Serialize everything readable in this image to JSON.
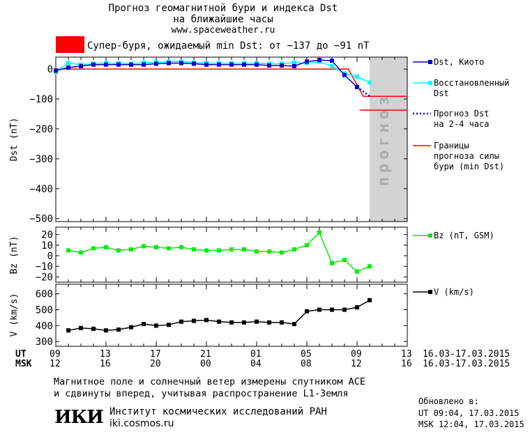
{
  "header": {
    "title_line1": "Прогноз геомагнитной бури и индекса Dst",
    "title_line2": "на ближайшие часы",
    "url": "www.spaceweather.ru",
    "storm_label": "Супер-буря, ожидаемый min Dst: от −137 до −91 nT",
    "storm_color": "#ff0000"
  },
  "legend": {
    "dst_kyoto": "Dst, Киото",
    "restored_1": "Восстановленный",
    "restored_2": "Dst",
    "forecast_1": "Прогноз Dst",
    "forecast_2": "на 2-4 часа",
    "bounds_1": "Границы",
    "bounds_2": "прогноза силы",
    "bounds_3": "бури (min Dst)",
    "bz": "Bz (nT, GSM)",
    "v": "V (km/s)"
  },
  "forecast_band_text": "прогноз",
  "time_axis": {
    "ut_label": "UT",
    "msk_label": "MSK",
    "ut_ticks": [
      "09",
      "13",
      "17",
      "21",
      "01",
      "05",
      "09",
      "13"
    ],
    "msk_ticks": [
      "12",
      "16",
      "20",
      "00",
      "04",
      "08",
      "12",
      "16"
    ],
    "date_range_ut": "16.03-17.03.2015",
    "date_range_msk": "16.03-17.03.2015"
  },
  "footer": {
    "note_1": "Магнитное поле и солнечный ветер измерены спутником ACE",
    "note_2": "и сдвинуты вперед, учитывая распространение L1-Земля",
    "logo": "ИКИ",
    "institute": "Институт космических исследований РАН",
    "institute_url": "iki.cosmos.ru",
    "updated_label": "Обновлено в:",
    "updated_ut": "UT   09:04, 17.03.2015",
    "updated_msk": "MSK 12:04, 17.03.2015"
  },
  "chart_data": [
    {
      "type": "line",
      "ylabel": "Dst (nT)",
      "xlim": [
        0,
        28
      ],
      "ylim": [
        -510,
        40
      ],
      "yticks": [
        0,
        -100,
        -200,
        -300,
        -400,
        -500
      ],
      "forecast_band": [
        25,
        28
      ],
      "colors": {
        "kyoto": "#0000cc",
        "restored": "#00ffff",
        "forecast": "#0000cc",
        "bounds": "#ff0000",
        "band": "#d3d3d3"
      },
      "series": [
        {
          "name": "Dst, Киото",
          "x": [
            0,
            1,
            2,
            3,
            4,
            5,
            6,
            7,
            8,
            9,
            10,
            11,
            12,
            13,
            14,
            15,
            16,
            17,
            18,
            19,
            20,
            21,
            22,
            23,
            24
          ],
          "values": [
            -5,
            5,
            10,
            15,
            15,
            15,
            15,
            15,
            18,
            20,
            20,
            18,
            15,
            15,
            15,
            15,
            15,
            12,
            12,
            10,
            25,
            30,
            28,
            -20,
            -60
          ]
        },
        {
          "name": "Восстановленный Dst",
          "x": [
            0,
            1,
            2,
            3,
            4,
            5,
            6,
            7,
            8,
            9,
            10,
            11,
            12,
            13,
            14,
            15,
            16,
            17,
            18,
            19,
            20,
            21,
            22,
            23,
            24,
            25
          ],
          "values": [
            -8,
            20,
            15,
            18,
            20,
            20,
            18,
            22,
            22,
            25,
            25,
            22,
            20,
            20,
            20,
            20,
            20,
            18,
            18,
            22,
            20,
            25,
            10,
            -15,
            -25,
            -45
          ]
        },
        {
          "name": "Прогноз Dst на 2-4 часа",
          "x": [
            24,
            24.5,
            25
          ],
          "values": [
            -60,
            -75,
            -90
          ]
        },
        {
          "name": "Границы прогноза силы бури (min Dst)",
          "x": [
            0,
            23.3,
            24.5,
            28
          ],
          "values": [
            0,
            0,
            -91,
            -91
          ]
        },
        {
          "name": "",
          "x": [
            24.2,
            28
          ],
          "values": [
            -137,
            -137
          ]
        }
      ]
    },
    {
      "type": "line",
      "ylabel": "Bz (nT)",
      "xlim": [
        0,
        28
      ],
      "ylim": [
        -25,
        27
      ],
      "yticks": [
        20,
        10,
        0,
        -10,
        -20
      ],
      "color": "#00ee00",
      "series": [
        {
          "name": "Bz (nT, GSM)",
          "x": [
            1,
            2,
            3,
            4,
            5,
            6,
            7,
            8,
            9,
            10,
            11,
            12,
            13,
            14,
            15,
            16,
            17,
            18,
            19,
            20,
            21,
            22,
            23,
            24,
            25
          ],
          "values": [
            5,
            3,
            7,
            8,
            5,
            6,
            9,
            8,
            7,
            8,
            6,
            5,
            5,
            6,
            6,
            4,
            4,
            3,
            6,
            10,
            22,
            -7,
            -4,
            -15,
            -10
          ]
        }
      ]
    },
    {
      "type": "line",
      "ylabel": "V (km/s)",
      "xlim": [
        0,
        28
      ],
      "ylim": [
        270,
        660
      ],
      "yticks": [
        600,
        500,
        400,
        300
      ],
      "color": "#000000",
      "series": [
        {
          "name": "V (km/s)",
          "x": [
            1,
            2,
            3,
            4,
            5,
            6,
            7,
            8,
            9,
            10,
            11,
            12,
            13,
            14,
            15,
            16,
            17,
            18,
            19,
            20,
            21,
            22,
            23,
            24,
            25
          ],
          "values": [
            370,
            385,
            380,
            370,
            375,
            390,
            410,
            400,
            405,
            425,
            430,
            435,
            425,
            420,
            420,
            425,
            420,
            420,
            410,
            490,
            500,
            500,
            500,
            515,
            560
          ]
        }
      ]
    }
  ]
}
